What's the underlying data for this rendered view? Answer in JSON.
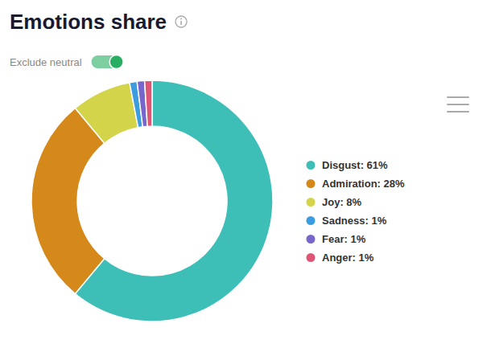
{
  "chart_data": {
    "type": "donut",
    "title": "Emotions share",
    "subtitle": "Exclude neutral",
    "categories": [
      "Disgust: 61%",
      "Admiration: 28%",
      "Joy: 8%",
      "Sadness: 1%",
      "Fear: 1%",
      "Anger: 1%"
    ],
    "values": [
      61,
      28,
      8,
      1,
      1,
      1
    ],
    "colors": [
      "#3dbfb8",
      "#d4891a",
      "#d4d44a",
      "#3b9de0",
      "#7766cc",
      "#e05575"
    ],
    "legend": "right"
  }
}
